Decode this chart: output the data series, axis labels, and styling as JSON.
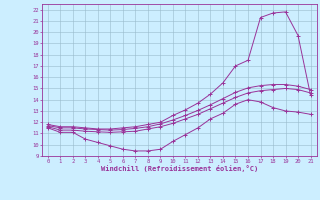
{
  "xlabel": "Windchill (Refroidissement éolien,°C)",
  "bg_color": "#cceeff",
  "line_color": "#993399",
  "grid_color": "#99bbcc",
  "xlim": [
    -0.5,
    21.5
  ],
  "ylim": [
    9,
    22.5
  ],
  "xticks": [
    0,
    1,
    2,
    3,
    4,
    5,
    6,
    7,
    8,
    9,
    10,
    11,
    12,
    13,
    14,
    15,
    16,
    17,
    18,
    19,
    20,
    21
  ],
  "yticks": [
    9,
    10,
    11,
    12,
    13,
    14,
    15,
    16,
    17,
    18,
    19,
    20,
    21,
    22
  ],
  "curve1_x": [
    0,
    1,
    2,
    3,
    4,
    5,
    6,
    7,
    8,
    9,
    10,
    11,
    12,
    13,
    14,
    15,
    16,
    17,
    18,
    19,
    20,
    21
  ],
  "curve1_y": [
    11.5,
    11.1,
    11.1,
    10.5,
    10.2,
    9.9,
    9.6,
    9.45,
    9.45,
    9.6,
    10.3,
    10.9,
    11.5,
    12.3,
    12.8,
    13.6,
    14.0,
    13.8,
    13.3,
    13.0,
    12.9,
    12.7
  ],
  "curve2_x": [
    0,
    1,
    2,
    3,
    4,
    5,
    6,
    7,
    8,
    9,
    10,
    11,
    12,
    13,
    14,
    15,
    16,
    17,
    18,
    19,
    20,
    21
  ],
  "curve2_y": [
    11.6,
    11.3,
    11.3,
    11.2,
    11.15,
    11.1,
    11.15,
    11.2,
    11.4,
    11.6,
    11.9,
    12.3,
    12.7,
    13.2,
    13.7,
    14.2,
    14.6,
    14.8,
    14.9,
    15.0,
    14.9,
    14.6
  ],
  "curve3_x": [
    0,
    1,
    2,
    3,
    4,
    5,
    6,
    7,
    8,
    9,
    10,
    11,
    12,
    13,
    14,
    15,
    16,
    17,
    18,
    19,
    20,
    21
  ],
  "curve3_y": [
    11.7,
    11.5,
    11.5,
    11.4,
    11.35,
    11.3,
    11.35,
    11.45,
    11.6,
    11.85,
    12.2,
    12.6,
    13.05,
    13.55,
    14.1,
    14.65,
    15.05,
    15.25,
    15.35,
    15.35,
    15.2,
    14.9
  ],
  "curve4_x": [
    0,
    1,
    2,
    3,
    4,
    5,
    6,
    7,
    8,
    9,
    10,
    11,
    12,
    13,
    14,
    15,
    16,
    17,
    18,
    19,
    20,
    21
  ],
  "curve4_y": [
    11.8,
    11.6,
    11.6,
    11.5,
    11.4,
    11.4,
    11.5,
    11.6,
    11.8,
    12.0,
    12.6,
    13.1,
    13.7,
    14.5,
    15.5,
    17.0,
    17.5,
    21.3,
    21.7,
    21.8,
    19.7,
    14.4
  ]
}
